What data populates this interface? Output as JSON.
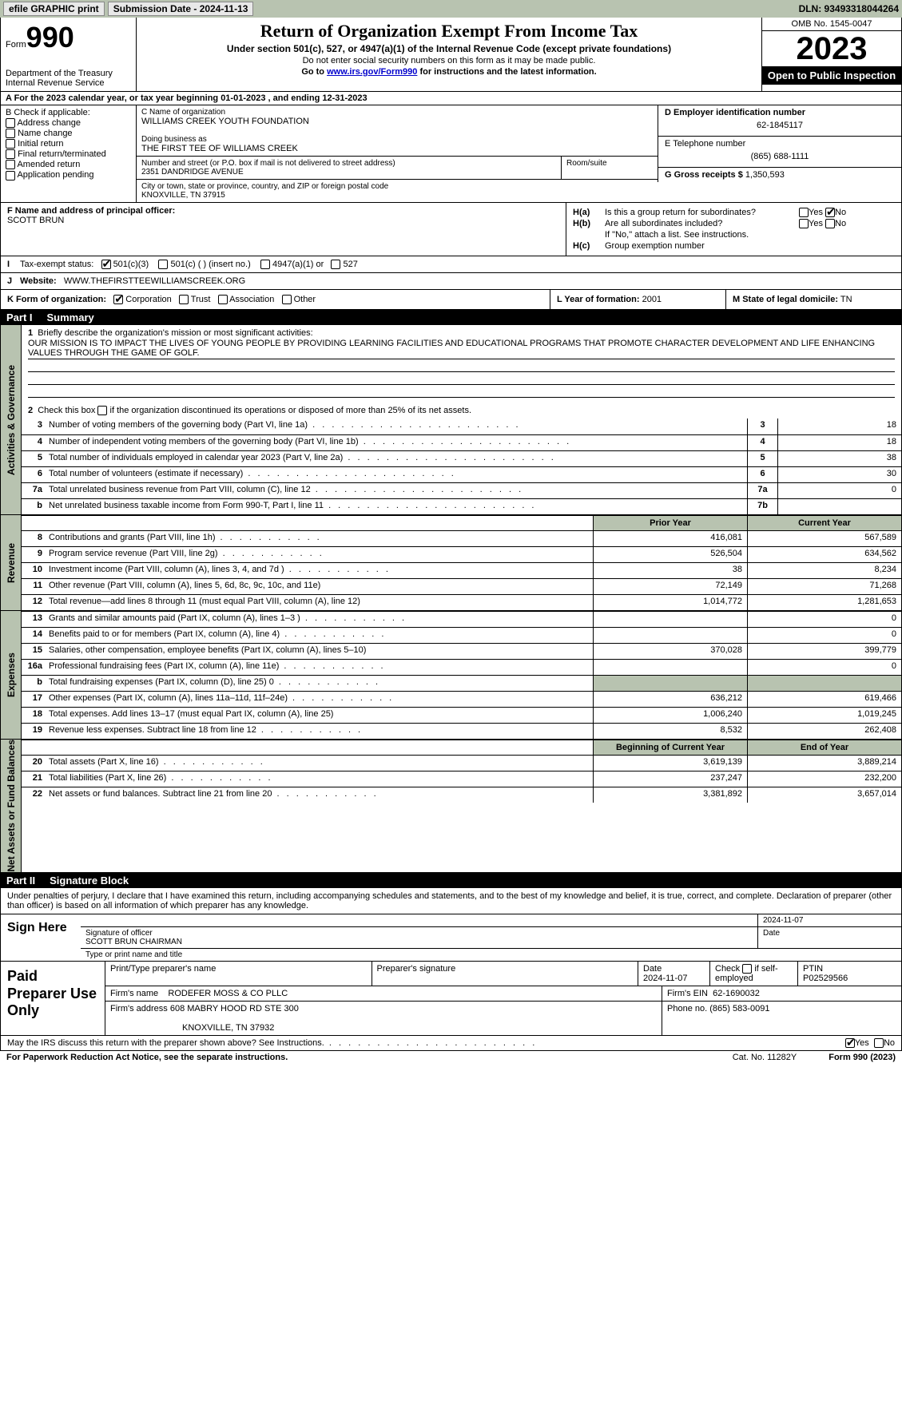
{
  "topbar": {
    "efile": "efile GRAPHIC print",
    "submission": "Submission Date - 2024-11-13",
    "dln": "DLN: 93493318044264"
  },
  "header": {
    "form_label": "Form",
    "form_num": "990",
    "title": "Return of Organization Exempt From Income Tax",
    "subtitle": "Under section 501(c), 527, or 4947(a)(1) of the Internal Revenue Code (except private foundations)",
    "note1": "Do not enter social security numbers on this form as it may be made public.",
    "note2_pre": "Go to ",
    "note2_link": "www.irs.gov/Form990",
    "note2_post": " for instructions and the latest information.",
    "dept": "Department of the Treasury\nInternal Revenue Service",
    "omb": "OMB No. 1545-0047",
    "year": "2023",
    "inspect": "Open to Public Inspection"
  },
  "line_a": "A  For the 2023 calendar year, or tax year beginning 01-01-2023   , and ending 12-31-2023",
  "box_b": {
    "label": "B Check if applicable:",
    "opts": [
      "Address change",
      "Name change",
      "Initial return",
      "Final return/terminated",
      "Amended return",
      "Application pending"
    ]
  },
  "box_c": {
    "name_lbl": "C Name of organization",
    "name": "WILLIAMS CREEK YOUTH FOUNDATION",
    "dba_lbl": "Doing business as",
    "dba": "THE FIRST TEE OF WILLIAMS CREEK",
    "street_lbl": "Number and street (or P.O. box if mail is not delivered to street address)",
    "street": "2351 DANDRIDGE AVENUE",
    "room_lbl": "Room/suite",
    "city_lbl": "City or town, state or province, country, and ZIP or foreign postal code",
    "city": "KNOXVILLE, TN  37915"
  },
  "box_d": {
    "lbl": "D Employer identification number",
    "val": "62-1845117"
  },
  "box_e": {
    "lbl": "E Telephone number",
    "val": "(865) 688-1111"
  },
  "box_g": {
    "lbl": "G Gross receipts $",
    "val": "1,350,593"
  },
  "box_f": {
    "lbl": "F  Name and address of principal officer:",
    "val": "SCOTT BRUN"
  },
  "box_h": {
    "ha": "Is this a group return for subordinates?",
    "hb": "Are all subordinates included?",
    "hb_note": "If \"No,\" attach a list. See instructions.",
    "hc": "Group exemption number"
  },
  "box_i": {
    "lbl": "Tax-exempt status:",
    "opt1": "501(c)(3)",
    "opt2": "501(c) (  ) (insert no.)",
    "opt3": "4947(a)(1) or",
    "opt4": "527"
  },
  "box_j": {
    "lbl": "Website:",
    "val": "WWW.THEFIRSTTEEWILLIAMSCREEK.ORG"
  },
  "box_k": {
    "lbl": "K Form of organization:",
    "opts": [
      "Corporation",
      "Trust",
      "Association",
      "Other"
    ]
  },
  "box_l": {
    "lbl": "L Year of formation:",
    "val": "2001"
  },
  "box_m": {
    "lbl": "M State of legal domicile:",
    "val": "TN"
  },
  "part1": {
    "num": "Part I",
    "title": "Summary"
  },
  "mission": {
    "prompt": "Briefly describe the organization's mission or most significant activities:",
    "text": "OUR MISSION IS TO IMPACT THE LIVES OF YOUNG PEOPLE BY PROVIDING LEARNING FACILITIES AND EDUCATIONAL PROGRAMS THAT PROMOTE CHARACTER DEVELOPMENT AND LIFE ENHANCING VALUES THROUGH THE GAME OF GOLF."
  },
  "line2txt": "Check this box    if the organization discontinued its operations or disposed of more than 25% of its net assets.",
  "gov_lines": [
    {
      "n": "3",
      "d": "Number of voting members of the governing body (Part VI, line 1a)",
      "box": "3",
      "v": "18"
    },
    {
      "n": "4",
      "d": "Number of independent voting members of the governing body (Part VI, line 1b)",
      "box": "4",
      "v": "18"
    },
    {
      "n": "5",
      "d": "Total number of individuals employed in calendar year 2023 (Part V, line 2a)",
      "box": "5",
      "v": "38"
    },
    {
      "n": "6",
      "d": "Total number of volunteers (estimate if necessary)",
      "box": "6",
      "v": "30"
    },
    {
      "n": "7a",
      "d": "Total unrelated business revenue from Part VIII, column (C), line 12",
      "box": "7a",
      "v": "0"
    },
    {
      "n": "b",
      "d": "Net unrelated business taxable income from Form 990-T, Part I, line 11",
      "box": "7b",
      "v": ""
    }
  ],
  "col_hdrs": {
    "prior": "Prior Year",
    "current": "Current Year"
  },
  "revenue": [
    {
      "n": "8",
      "d": "Contributions and grants (Part VIII, line 1h)",
      "p": "416,081",
      "c": "567,589"
    },
    {
      "n": "9",
      "d": "Program service revenue (Part VIII, line 2g)",
      "p": "526,504",
      "c": "634,562"
    },
    {
      "n": "10",
      "d": "Investment income (Part VIII, column (A), lines 3, 4, and 7d )",
      "p": "38",
      "c": "8,234"
    },
    {
      "n": "11",
      "d": "Other revenue (Part VIII, column (A), lines 5, 6d, 8c, 9c, 10c, and 11e)",
      "p": "72,149",
      "c": "71,268"
    },
    {
      "n": "12",
      "d": "Total revenue—add lines 8 through 11 (must equal Part VIII, column (A), line 12)",
      "p": "1,014,772",
      "c": "1,281,653"
    }
  ],
  "expenses": [
    {
      "n": "13",
      "d": "Grants and similar amounts paid (Part IX, column (A), lines 1–3 )",
      "p": "",
      "c": "0"
    },
    {
      "n": "14",
      "d": "Benefits paid to or for members (Part IX, column (A), line 4)",
      "p": "",
      "c": "0"
    },
    {
      "n": "15",
      "d": "Salaries, other compensation, employee benefits (Part IX, column (A), lines 5–10)",
      "p": "370,028",
      "c": "399,779"
    },
    {
      "n": "16a",
      "d": "Professional fundraising fees (Part IX, column (A), line 11e)",
      "p": "",
      "c": "0"
    },
    {
      "n": "b",
      "d": "Total fundraising expenses (Part IX, column (D), line 25) 0",
      "p": "SHADE",
      "c": "SHADE"
    },
    {
      "n": "17",
      "d": "Other expenses (Part IX, column (A), lines 11a–11d, 11f–24e)",
      "p": "636,212",
      "c": "619,466"
    },
    {
      "n": "18",
      "d": "Total expenses. Add lines 13–17 (must equal Part IX, column (A), line 25)",
      "p": "1,006,240",
      "c": "1,019,245"
    },
    {
      "n": "19",
      "d": "Revenue less expenses. Subtract line 18 from line 12",
      "p": "8,532",
      "c": "262,408"
    }
  ],
  "net_hdrs": {
    "beg": "Beginning of Current Year",
    "end": "End of Year"
  },
  "netassets": [
    {
      "n": "20",
      "d": "Total assets (Part X, line 16)",
      "p": "3,619,139",
      "c": "3,889,214"
    },
    {
      "n": "21",
      "d": "Total liabilities (Part X, line 26)",
      "p": "237,247",
      "c": "232,200"
    },
    {
      "n": "22",
      "d": "Net assets or fund balances. Subtract line 21 from line 20",
      "p": "3,381,892",
      "c": "3,657,014"
    }
  ],
  "sidelabels": {
    "gov": "Activities & Governance",
    "rev": "Revenue",
    "exp": "Expenses",
    "net": "Net Assets or Fund Balances"
  },
  "part2": {
    "num": "Part II",
    "title": "Signature Block"
  },
  "sig_intro": "Under penalties of perjury, I declare that I have examined this return, including accompanying schedules and statements, and to the best of my knowledge and belief, it is true, correct, and complete. Declaration of preparer (other than officer) is based on all information of which preparer has any knowledge.",
  "sign": {
    "left": "Sign Here",
    "date": "2024-11-07",
    "sig_lbl": "Signature of officer",
    "name": "SCOTT BRUN  CHAIRMAN",
    "type_lbl": "Type or print name and title",
    "date_lbl": "Date"
  },
  "prep": {
    "left": "Paid Preparer Use Only",
    "h1": "Print/Type preparer's name",
    "h2": "Preparer's signature",
    "h3": "Date",
    "h3v": "2024-11-07",
    "h4_pre": "Check",
    "h4_post": "if self-employed",
    "h5": "PTIN",
    "h5v": "P02529566",
    "firm_lbl": "Firm's name",
    "firm": "RODEFER MOSS & CO PLLC",
    "ein_lbl": "Firm's EIN",
    "ein": "62-1690032",
    "addr_lbl": "Firm's address",
    "addr1": "608 MABRY HOOD RD STE 300",
    "addr2": "KNOXVILLE, TN  37932",
    "phone_lbl": "Phone no.",
    "phone": "(865) 583-0091"
  },
  "discuss": {
    "q": "May the IRS discuss this return with the preparer shown above? See Instructions.",
    "yes": "Yes",
    "no": "No"
  },
  "footer": {
    "l": "For Paperwork Reduction Act Notice, see the separate instructions.",
    "c": "Cat. No. 11282Y",
    "r": "Form 990 (2023)"
  }
}
